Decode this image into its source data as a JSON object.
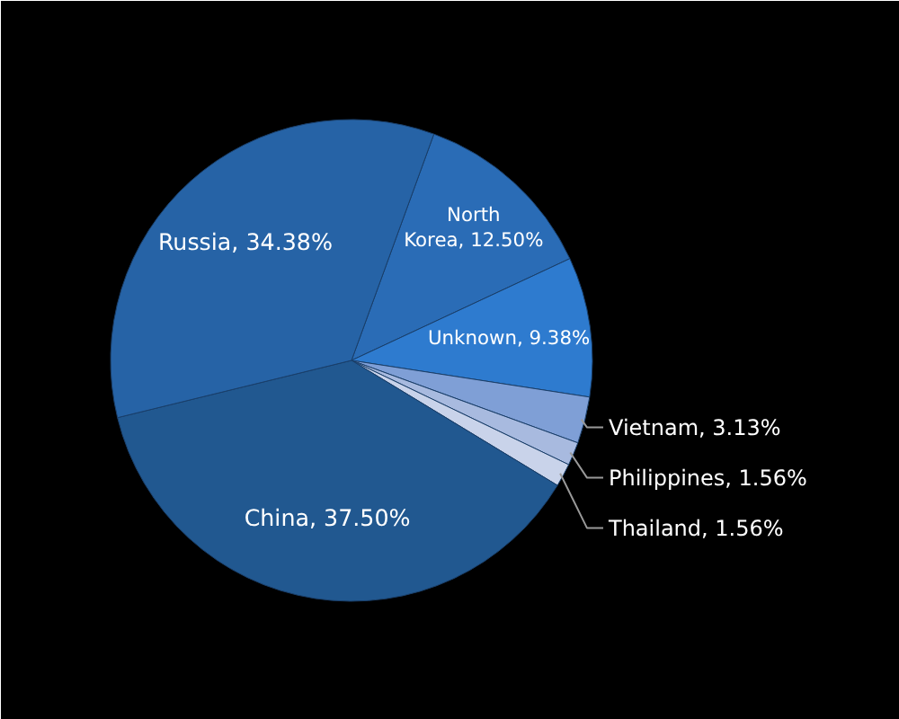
{
  "chart_data": {
    "type": "pie",
    "categories": [
      "North Korea",
      "Unknown",
      "Vietnam",
      "Philippines",
      "Thailand",
      "China",
      "Russia"
    ],
    "values": [
      12.5,
      9.38,
      3.13,
      1.56,
      1.56,
      37.5,
      34.38
    ],
    "value_labels": [
      "12.50%",
      "9.38%",
      "3.13%",
      "1.56%",
      "1.56%",
      "37.50%",
      "34.38%"
    ],
    "colors": [
      "#2a6cb6",
      "#2e7bcf",
      "#7f9fd6",
      "#a8badf",
      "#c9d3ea",
      "#215890",
      "#2663a6"
    ]
  }
}
